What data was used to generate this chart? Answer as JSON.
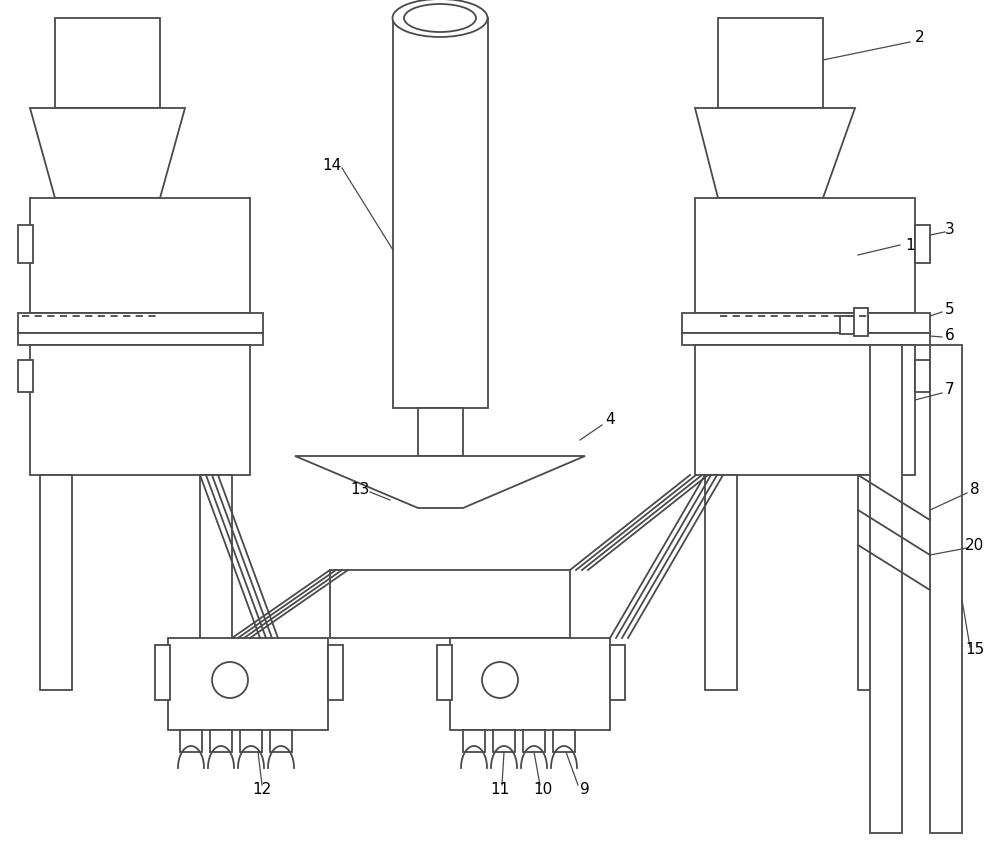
{
  "bg_color": "#ffffff",
  "line_color": "#4a4a4a",
  "line_width": 1.3,
  "fig_width": 10.0,
  "fig_height": 8.48
}
